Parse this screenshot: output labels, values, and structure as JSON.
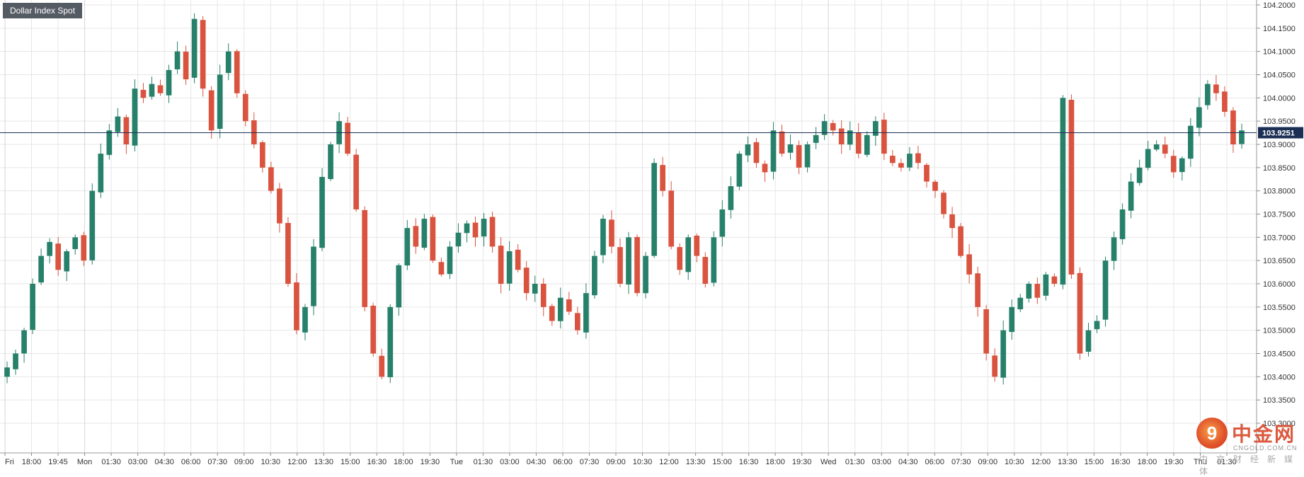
{
  "header": {
    "title": "Dollar Index Spot"
  },
  "watermark": {
    "logo_glyph": "9",
    "chinese_name": "中金网",
    "domain": "CNGOLD.COM.CN",
    "subtitle": "中文财经新媒体"
  },
  "colors": {
    "up": "#26806a",
    "down": "#d9533f",
    "grid": "#e6e6e6",
    "axis_text": "#333333",
    "last_price_line": "#1b2f55"
  },
  "chart_data": {
    "type": "candlestick",
    "title": "Dollar Index Spot",
    "ylim": [
      103.25,
      104.2
    ],
    "y_ticks": [
      "104.2000",
      "104.1500",
      "104.1000",
      "104.0500",
      "104.0000",
      "103.9500",
      "103.9000",
      "103.8500",
      "103.8000",
      "103.7500",
      "103.7000",
      "103.6500",
      "103.6000",
      "103.5500",
      "103.5000",
      "103.4500",
      "103.4000",
      "103.3500",
      "103.3000"
    ],
    "last_price": "103.9251",
    "x_ticks": [
      "Fri",
      "18:00",
      "19:45",
      "Mon",
      "01:30",
      "03:00",
      "04:30",
      "06:00",
      "07:30",
      "09:00",
      "10:30",
      "12:00",
      "13:30",
      "15:00",
      "16:30",
      "18:00",
      "19:30",
      "Tue",
      "01:30",
      "03:00",
      "04:30",
      "06:00",
      "07:30",
      "09:00",
      "10:30",
      "12:00",
      "13:30",
      "15:00",
      "16:30",
      "18:00",
      "19:30",
      "Wed",
      "01:30",
      "03:00",
      "04:30",
      "06:00",
      "07:30",
      "09:00",
      "10:30",
      "12:00",
      "13:30",
      "15:00",
      "16:30",
      "18:00",
      "19:30",
      "Thu",
      "01:30"
    ],
    "grid": true,
    "close_path": [
      103.42,
      103.45,
      103.5,
      103.6,
      103.66,
      103.69,
      103.63,
      103.67,
      103.7,
      103.65,
      103.8,
      103.88,
      103.93,
      103.96,
      103.9,
      104.02,
      104.0,
      104.03,
      104.01,
      104.06,
      104.1,
      104.04,
      104.17,
      104.02,
      103.93,
      104.05,
      104.1,
      104.01,
      103.95,
      103.9,
      103.85,
      103.8,
      103.73,
      103.6,
      103.5,
      103.55,
      103.68,
      103.83,
      103.9,
      103.95,
      103.88,
      103.76,
      103.55,
      103.45,
      103.4,
      103.55,
      103.64,
      103.72,
      103.68,
      103.74,
      103.65,
      103.62,
      103.68,
      103.71,
      103.73,
      103.7,
      103.74,
      103.68,
      103.6,
      103.67,
      103.63,
      103.58,
      103.6,
      103.55,
      103.52,
      103.57,
      103.54,
      103.5,
      103.58,
      103.66,
      103.74,
      103.68,
      103.6,
      103.7,
      103.58,
      103.66,
      103.86,
      103.8,
      103.68,
      103.63,
      103.7,
      103.66,
      103.6,
      103.7,
      103.76,
      103.81,
      103.88,
      103.9,
      103.86,
      103.84,
      103.93,
      103.88,
      103.9,
      103.85,
      103.9,
      103.92,
      103.95,
      103.93,
      103.9,
      103.93,
      103.88,
      103.92,
      103.95,
      103.88,
      103.86,
      103.85,
      103.88,
      103.86,
      103.82,
      103.8,
      103.75,
      103.72,
      103.66,
      103.62,
      103.55,
      103.45,
      103.4,
      103.5,
      103.55,
      103.57,
      103.6,
      103.57,
      103.62,
      103.6,
      104.0,
      103.62,
      103.45,
      103.5,
      103.52,
      103.65,
      103.7,
      103.76,
      103.82,
      103.85,
      103.89,
      103.9,
      103.88,
      103.84,
      103.87,
      103.94,
      103.98,
      104.03,
      104.01,
      103.97,
      103.9,
      103.93
    ]
  }
}
